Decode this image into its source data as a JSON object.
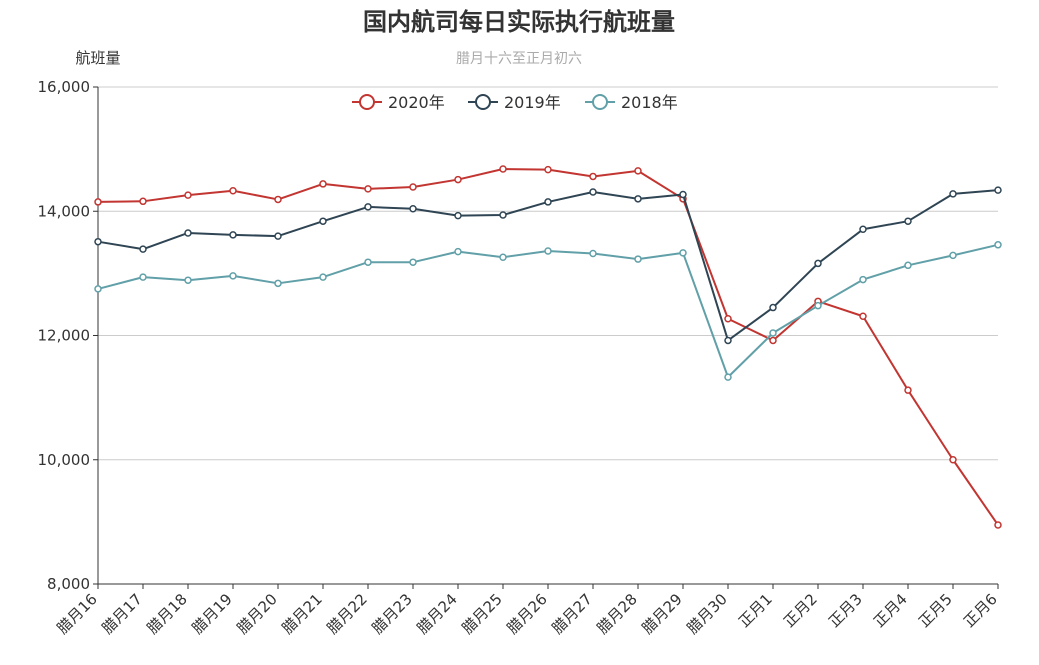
{
  "chart_data": {
    "type": "line",
    "title": "国内航司每日实际执行航班量",
    "subtitle": "腊月十六至正月初六",
    "ylabel": "航班量",
    "ylim": [
      8000,
      16000
    ],
    "yticks": [
      "8,000",
      "10,000",
      "12,000",
      "14,000",
      "16,000"
    ],
    "grid": true,
    "legend_position": "top-center",
    "categories": [
      "腊月16",
      "腊月17",
      "腊月18",
      "腊月19",
      "腊月20",
      "腊月21",
      "腊月22",
      "腊月23",
      "腊月24",
      "腊月25",
      "腊月26",
      "腊月27",
      "腊月28",
      "腊月29",
      "腊月30",
      "正月1",
      "正月2",
      "正月3",
      "正月4",
      "正月5",
      "正月6"
    ],
    "series": [
      {
        "name": "2020年",
        "color": "#c23531",
        "values": [
          14150,
          14160,
          14260,
          14330,
          14190,
          14440,
          14360,
          14390,
          14510,
          14680,
          14670,
          14560,
          14650,
          14200,
          12270,
          11920,
          12550,
          12310,
          11120,
          10000,
          8950
        ]
      },
      {
        "name": "2019年",
        "color": "#2f4554",
        "values": [
          13510,
          13390,
          13650,
          13620,
          13600,
          13840,
          14070,
          14040,
          13930,
          13940,
          14150,
          14310,
          14200,
          14270,
          11920,
          12450,
          13160,
          13710,
          13840,
          14280,
          14340
        ]
      },
      {
        "name": "2018年",
        "color": "#61a0a8",
        "values": [
          12750,
          12940,
          12890,
          12960,
          12840,
          12940,
          13180,
          13180,
          13350,
          13260,
          13360,
          13320,
          13230,
          13330,
          11330,
          12040,
          12480,
          12900,
          13130,
          13290,
          13460
        ]
      }
    ]
  }
}
